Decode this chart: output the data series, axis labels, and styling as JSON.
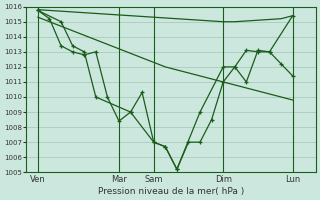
{
  "title": "Pression niveau de la mer( hPa )",
  "background_color": "#cce8de",
  "grid_color": "#aaccbb",
  "line_color": "#1a5c1a",
  "ylim": [
    1005,
    1016
  ],
  "yticks": [
    1005,
    1006,
    1007,
    1008,
    1009,
    1010,
    1011,
    1012,
    1013,
    1014,
    1015,
    1016
  ],
  "x_day_labels": [
    "Ven",
    "Mar",
    "Sam",
    "Dim",
    "Lun"
  ],
  "x_day_positions": [
    0.5,
    4.0,
    5.5,
    8.5,
    11.5
  ],
  "xlim": [
    0,
    12.5
  ],
  "line1_x": [
    0.5,
    1.0,
    1.5,
    2.0,
    2.5,
    3.0,
    3.5,
    4.0,
    4.5,
    5.0,
    5.5,
    6.0,
    6.5,
    7.0,
    7.5,
    8.0,
    8.5,
    9.0,
    9.5,
    10.0,
    10.5,
    11.0,
    11.5
  ],
  "line1_y": [
    1015.8,
    1015.75,
    1015.7,
    1015.65,
    1015.6,
    1015.55,
    1015.5,
    1015.45,
    1015.4,
    1015.35,
    1015.3,
    1015.25,
    1015.2,
    1015.15,
    1015.1,
    1015.05,
    1015.0,
    1015.0,
    1015.05,
    1015.1,
    1015.15,
    1015.2,
    1015.4
  ],
  "line2_x": [
    0.5,
    1.0,
    1.5,
    2.0,
    2.5,
    3.0,
    3.5,
    4.0,
    4.5,
    5.0,
    5.5,
    6.0,
    6.5,
    7.0,
    7.5,
    8.0,
    8.5,
    9.0,
    9.5,
    10.0,
    10.5,
    11.0,
    11.5
  ],
  "line2_y": [
    1015.3,
    1015.0,
    1014.7,
    1014.4,
    1014.1,
    1013.8,
    1013.5,
    1013.2,
    1012.9,
    1012.6,
    1012.3,
    1012.0,
    1011.8,
    1011.6,
    1011.4,
    1011.2,
    1011.0,
    1010.8,
    1010.6,
    1010.4,
    1010.2,
    1010.0,
    1009.8
  ],
  "line3_x": [
    0.5,
    1.0,
    1.5,
    2.0,
    2.5,
    3.0,
    3.5,
    4.0,
    4.5,
    5.0,
    5.5,
    6.0,
    6.5,
    7.0,
    7.5,
    8.0,
    8.5,
    9.0,
    9.5,
    10.0,
    10.5,
    11.0,
    11.5
  ],
  "line3_y": [
    1015.75,
    1015.2,
    1013.4,
    1013.0,
    1012.8,
    1013.0,
    1010.0,
    1008.4,
    1009.0,
    1010.3,
    1007.0,
    1006.7,
    1005.2,
    1007.0,
    1007.0,
    1008.5,
    1011.0,
    1012.0,
    1011.0,
    1013.1,
    1013.0,
    1012.2,
    1011.4
  ],
  "line4_x": [
    0.5,
    1.5,
    2.0,
    2.5,
    3.0,
    4.5,
    5.5,
    6.0,
    6.5,
    7.5,
    8.5,
    9.0,
    9.5,
    10.0,
    10.5,
    11.5
  ],
  "line4_y": [
    1015.75,
    1015.0,
    1013.4,
    1013.0,
    1010.0,
    1009.0,
    1007.0,
    1006.7,
    1005.2,
    1009.0,
    1012.0,
    1012.0,
    1013.1,
    1013.0,
    1013.0,
    1015.4
  ]
}
